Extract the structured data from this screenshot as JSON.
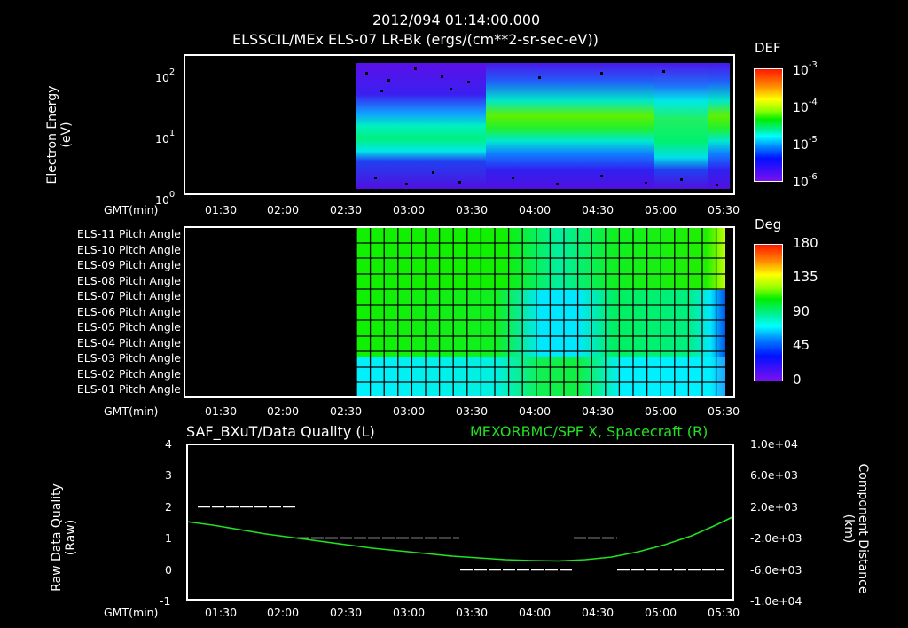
{
  "header": {
    "timestamp": "2012/094 01:14:00.000",
    "instrument_title": "ELSSCIL/MEx ELS-07 LR-Bk  (ergs/(cm**2-sr-sec-eV))"
  },
  "panel1": {
    "ylabel_line1": "Electron Energy",
    "ylabel_line2": "(eV)",
    "yticks": [
      {
        "base": "10",
        "exp": "2"
      },
      {
        "base": "10",
        "exp": "1"
      },
      {
        "base": "10",
        "exp": "0"
      }
    ],
    "xaxis_label": "GMT(min)",
    "xticks": [
      "01:30",
      "02:00",
      "02:30",
      "03:00",
      "03:30",
      "04:00",
      "04:30",
      "05:00",
      "05:30"
    ],
    "colorbar": {
      "title": "DEF",
      "ticks": [
        {
          "base": "10",
          "exp": "-3"
        },
        {
          "base": "10",
          "exp": "-4"
        },
        {
          "base": "10",
          "exp": "-5"
        },
        {
          "base": "10",
          "exp": "-6"
        }
      ]
    }
  },
  "panel2": {
    "row_labels": [
      "ELS-11 Pitch Angle",
      "ELS-10 Pitch Angle",
      "ELS-09 Pitch Angle",
      "ELS-08 Pitch Angle",
      "ELS-07 Pitch Angle",
      "ELS-06 Pitch Angle",
      "ELS-05 Pitch Angle",
      "ELS-04 Pitch Angle",
      "ELS-03 Pitch Angle",
      "ELS-02 Pitch Angle",
      "ELS-01 Pitch Angle"
    ],
    "xaxis_label": "GMT(min)",
    "xticks": [
      "01:30",
      "02:00",
      "02:30",
      "03:00",
      "03:30",
      "04:00",
      "04:30",
      "05:00",
      "05:30"
    ],
    "colorbar": {
      "title": "Deg",
      "ticks": [
        "180",
        "135",
        "90",
        "45",
        "0"
      ]
    }
  },
  "panel3": {
    "left_title": "SAF_BXuT/Data Quality (L)",
    "right_title": "MEXORBMC/SPF X, Spacecraft (R)",
    "right_title_color": "#22e022",
    "ylabel_left_line1": "Raw Data Quality",
    "ylabel_left_line2": "(Raw)",
    "ylabel_right_line1": "Component Distance",
    "ylabel_right_line2": "(km)",
    "yticks_left": [
      "4",
      "3",
      "2",
      "1",
      "0",
      "-1"
    ],
    "yticks_right": [
      "1.0e+04",
      "6.0e+03",
      "2.0e+03",
      "-2.0e+03",
      "-6.0e+03",
      "-1.0e+04"
    ],
    "xaxis_label": "GMT(min)",
    "xticks": [
      "01:30",
      "02:00",
      "02:30",
      "03:00",
      "03:30",
      "04:00",
      "04:30",
      "05:00",
      "05:30"
    ]
  },
  "chart_data": [
    {
      "type": "heatmap",
      "title": "ELSSCIL/MEx ELS-07 LR-Bk (ergs/(cm**2-sr-sec-eV))",
      "xlabel": "GMT(min)",
      "ylabel": "Electron Energy (eV)",
      "yscale": "log",
      "ylim": [
        1,
        150
      ],
      "xlim": [
        "01:14",
        "05:32"
      ],
      "data_start": "02:33",
      "colorbar": {
        "label": "DEF",
        "scale": "log",
        "range": [
          1e-06,
          0.001
        ]
      },
      "description": "Band of enhanced flux ~3-20 eV from 02:33 to 03:35 (~1e-5..3e-5); broadening to ~5-60 eV with peak ~2e-4 after 03:35; variable structure 04:50-05:10; band ~5-50 eV to 05:32"
    },
    {
      "type": "heatmap",
      "title": "ELS pitch angles",
      "xlabel": "GMT(min)",
      "categories": [
        "ELS-11",
        "ELS-10",
        "ELS-09",
        "ELS-08",
        "ELS-07",
        "ELS-06",
        "ELS-05",
        "ELS-04",
        "ELS-03",
        "ELS-02",
        "ELS-01"
      ],
      "colorbar": {
        "label": "Deg",
        "range": [
          0,
          180
        ]
      },
      "data_start": "02:33",
      "description": "ELS-11..ELS-06 ~100-110 deg (green) early; mid period 03:45-04:20 drops to ~60-70 deg for middle anodes; ELS-01/02 ~60 deg early rising to ~95 deg mid-pass; end near 05:25 ELS-11 ~130 deg, ELS-03..05 ~35 deg"
    },
    {
      "type": "line",
      "title": "SAF_BXuT/Data Quality (L) & MEXORBMC/SPF X, Spacecraft (R)",
      "xlabel": "GMT(min)",
      "x": [
        "01:14",
        "01:30",
        "02:00",
        "02:30",
        "03:00",
        "03:30",
        "04:00",
        "04:30",
        "05:00",
        "05:32"
      ],
      "series": [
        {
          "name": "SPF X, Spacecraft (km)",
          "axis": "right",
          "color": "#22e022",
          "values": [
            2500,
            1500,
            -800,
            -2500,
            -4000,
            -5400,
            -5800,
            -5300,
            -3000,
            2800
          ]
        },
        {
          "name": "Data Quality (Raw)",
          "axis": "left",
          "color": "#ffffff",
          "segments": [
            {
              "start": "01:22",
              "end": "02:07",
              "value": 2
            },
            {
              "start": "02:07",
              "end": "03:20",
              "value": 1
            },
            {
              "start": "03:21",
              "end": "04:13",
              "value": 0
            },
            {
              "start": "04:15",
              "end": "04:37",
              "value": 1
            },
            {
              "start": "04:37",
              "end": "05:28",
              "value": 0
            }
          ]
        }
      ],
      "ylim_left": [
        -1,
        4
      ],
      "ylim_right": [
        -10000,
        10000
      ],
      "ylabel": "Raw Data Quality (Raw)",
      "ylabel_right": "Component Distance (km)"
    }
  ]
}
